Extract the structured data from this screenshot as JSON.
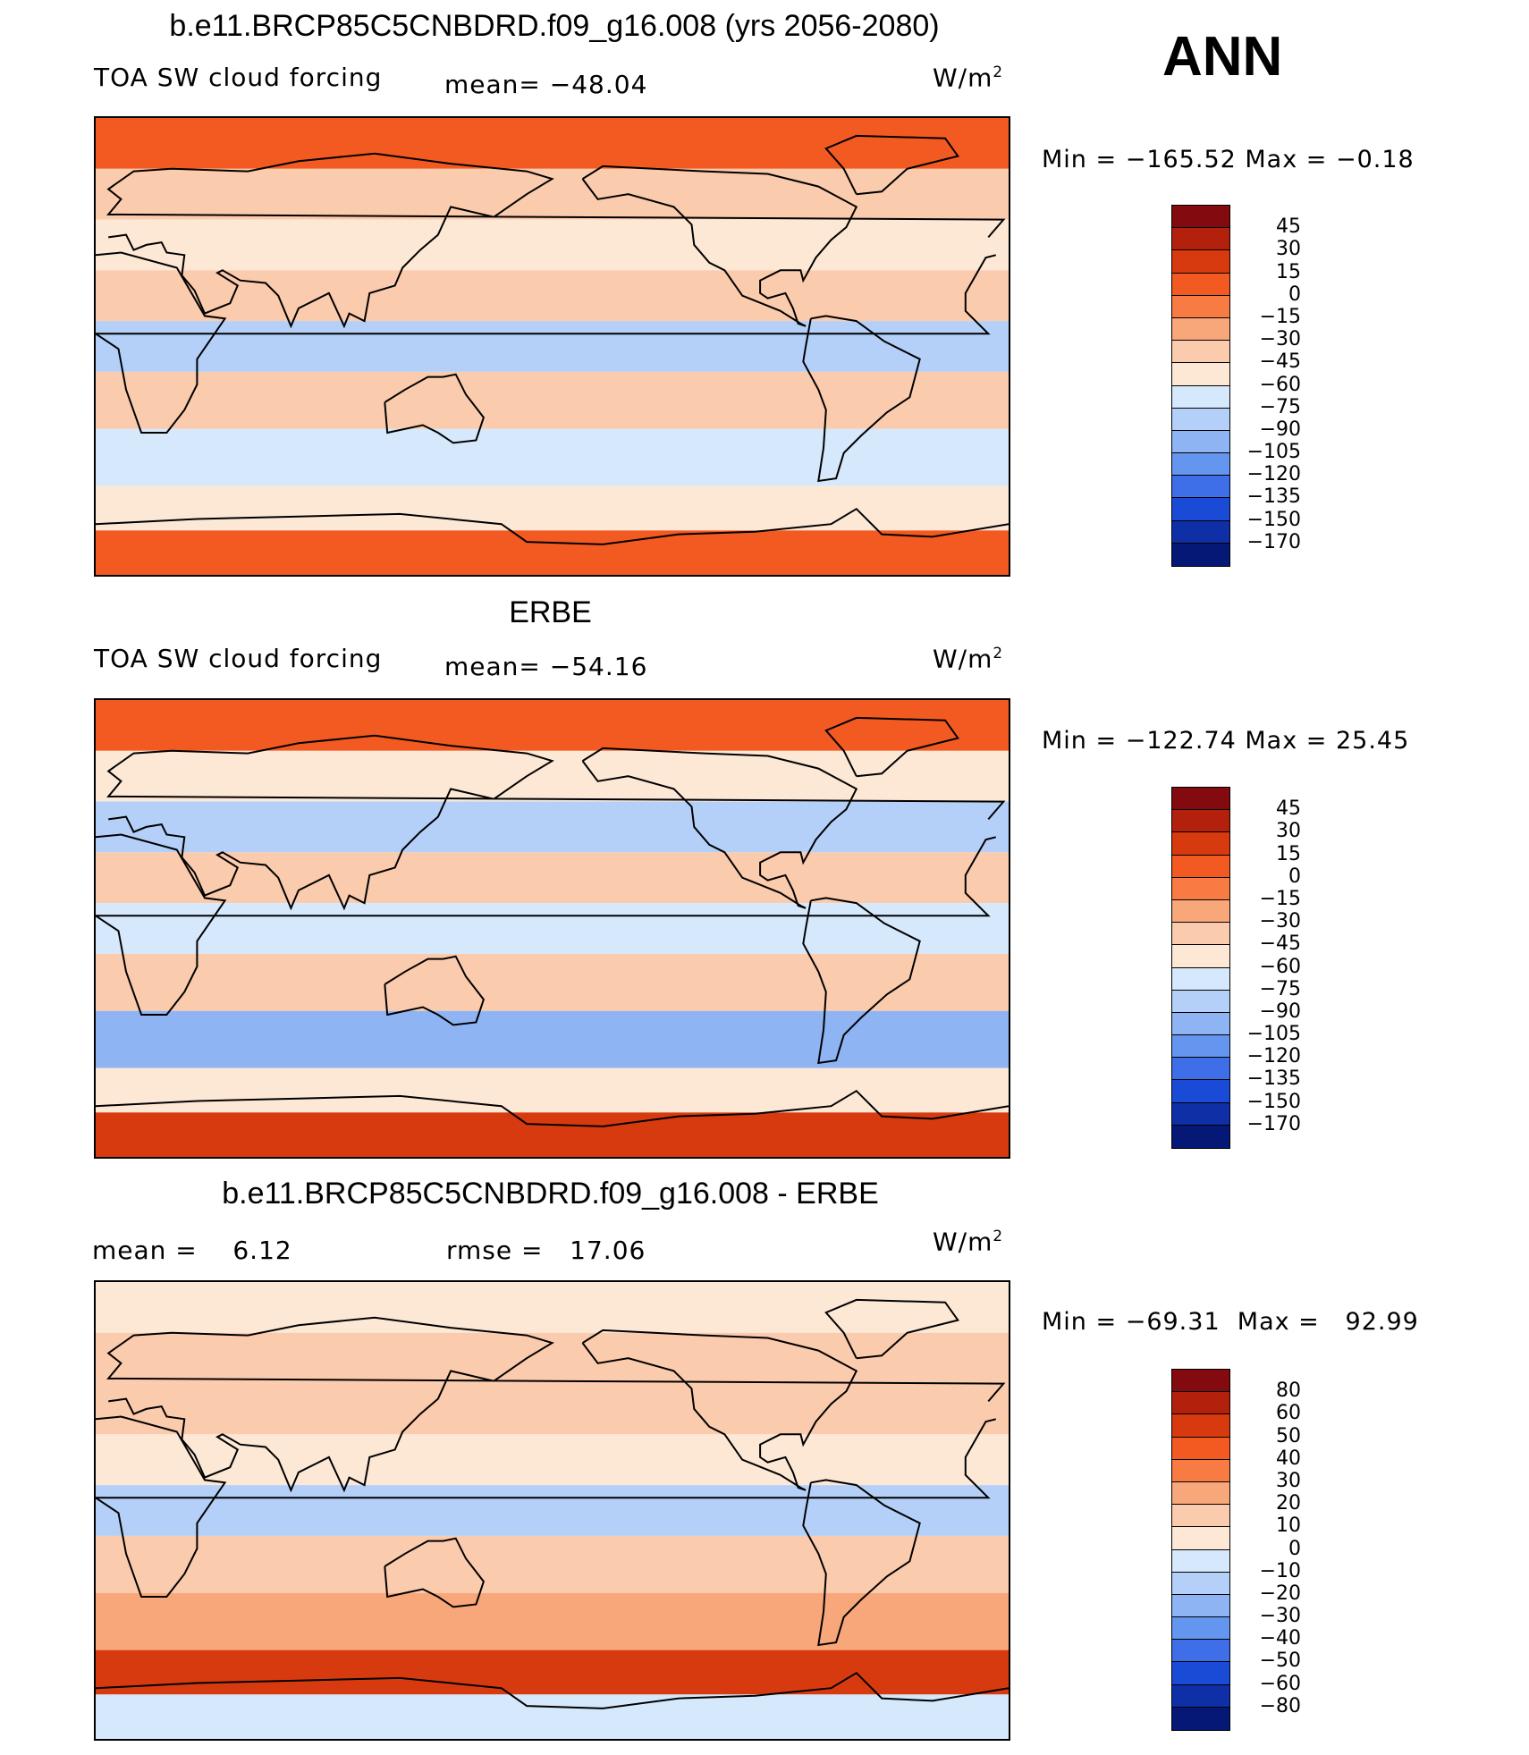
{
  "header": {
    "season": "ANN"
  },
  "colors": {
    "model_scale": [
      "#830a0e",
      "#b3200c",
      "#d83a10",
      "#f35a22",
      "#f77b43",
      "#f8a77a",
      "#fbcbad",
      "#fde8d6",
      "#d6e8fb",
      "#b4d0f8",
      "#8eb4f4",
      "#6495ef",
      "#3f6fe8",
      "#1a4bd6",
      "#0f2fa6",
      "#051876"
    ],
    "diff_scale": [
      "#830a0e",
      "#b3200c",
      "#d83a10",
      "#f35a22",
      "#f77b43",
      "#f8a77a",
      "#fbcbad",
      "#fde8d6",
      "#d6e8fb",
      "#b4d0f8",
      "#8eb4f4",
      "#6495ef",
      "#3f6fe8",
      "#1a4bd6",
      "#0f2fa6",
      "#051876"
    ],
    "coast": "#000000"
  },
  "panels": [
    {
      "title": "b.e11.BRCP85C5CNBDRD.f09_g16.008 (yrs 2056-2080)",
      "variable": "TOA SW cloud forcing",
      "stat1": "mean= −48.04",
      "stat2": "",
      "units": "W/m",
      "units_sup": "2",
      "minmax": "Min = −165.52 Max =  −0.18"
    },
    {
      "title": "ERBE",
      "variable": "TOA SW cloud forcing",
      "stat1": "mean= −54.16",
      "stat2": "",
      "units": "W/m",
      "units_sup": "2",
      "minmax": "Min = −122.74 Max =  25.45"
    },
    {
      "title": "b.e11.BRCP85C5CNBDRD.f09_g16.008 - ERBE",
      "variable": "",
      "stat1": "mean =    6.12",
      "stat2": "rmse =   17.06",
      "units": "W/m",
      "units_sup": "2",
      "minmax": "Min = −69.31  Max =   92.99"
    }
  ],
  "chart_data": [
    {
      "type": "heatmap",
      "title": "b.e11.BRCP85C5CNBDRD.f09_g16.008 (yrs 2056-2080)",
      "variable": "TOA SW cloud forcing",
      "units": "W/m2",
      "mean": -48.04,
      "min": -165.52,
      "max": -0.18,
      "colorbar_levels": [
        "45",
        "30",
        "15",
        "0",
        "−15",
        "−30",
        "−45",
        "−60",
        "−75",
        "−90",
        "−105",
        "−120",
        "−135",
        "−150",
        "−170"
      ],
      "bands": [
        {
          "lat": 80,
          "value": 0
        },
        {
          "lat": 60,
          "value": -40
        },
        {
          "lat": 40,
          "value": -60
        },
        {
          "lat": 20,
          "value": -45
        },
        {
          "lat": 0,
          "value": -80
        },
        {
          "lat": -20,
          "value": -40
        },
        {
          "lat": -45,
          "value": -75
        },
        {
          "lat": -65,
          "value": -60
        },
        {
          "lat": -80,
          "value": 0
        }
      ]
    },
    {
      "type": "heatmap",
      "title": "ERBE",
      "variable": "TOA SW cloud forcing",
      "units": "W/m2",
      "mean": -54.16,
      "min": -122.74,
      "max": 25.45,
      "colorbar_levels": [
        "45",
        "30",
        "15",
        "0",
        "−15",
        "−30",
        "−45",
        "−60",
        "−75",
        "−90",
        "−105",
        "−120",
        "−135",
        "−150",
        "−170"
      ],
      "bands": [
        {
          "lat": 80,
          "value": 0
        },
        {
          "lat": 60,
          "value": -55
        },
        {
          "lat": 40,
          "value": -80
        },
        {
          "lat": 20,
          "value": -40
        },
        {
          "lat": 0,
          "value": -75
        },
        {
          "lat": -20,
          "value": -45
        },
        {
          "lat": -45,
          "value": -95
        },
        {
          "lat": -65,
          "value": -60
        },
        {
          "lat": -80,
          "value": 15
        }
      ]
    },
    {
      "type": "heatmap",
      "title": "b.e11.BRCP85C5CNBDRD.f09_g16.008 - ERBE",
      "units": "W/m2",
      "mean": 6.12,
      "rmse": 17.06,
      "min": -69.31,
      "max": 92.99,
      "colorbar_levels": [
        "80",
        "60",
        "50",
        "40",
        "30",
        "20",
        "10",
        "0",
        "−10",
        "−20",
        "−30",
        "−40",
        "−50",
        "−60",
        "−80"
      ],
      "bands": [
        {
          "lat": 80,
          "value": 5
        },
        {
          "lat": 60,
          "value": 15
        },
        {
          "lat": 40,
          "value": 10
        },
        {
          "lat": 20,
          "value": 8
        },
        {
          "lat": 0,
          "value": -15
        },
        {
          "lat": -20,
          "value": 12
        },
        {
          "lat": -45,
          "value": 25
        },
        {
          "lat": -65,
          "value": 55
        },
        {
          "lat": -80,
          "value": -10
        }
      ]
    }
  ]
}
